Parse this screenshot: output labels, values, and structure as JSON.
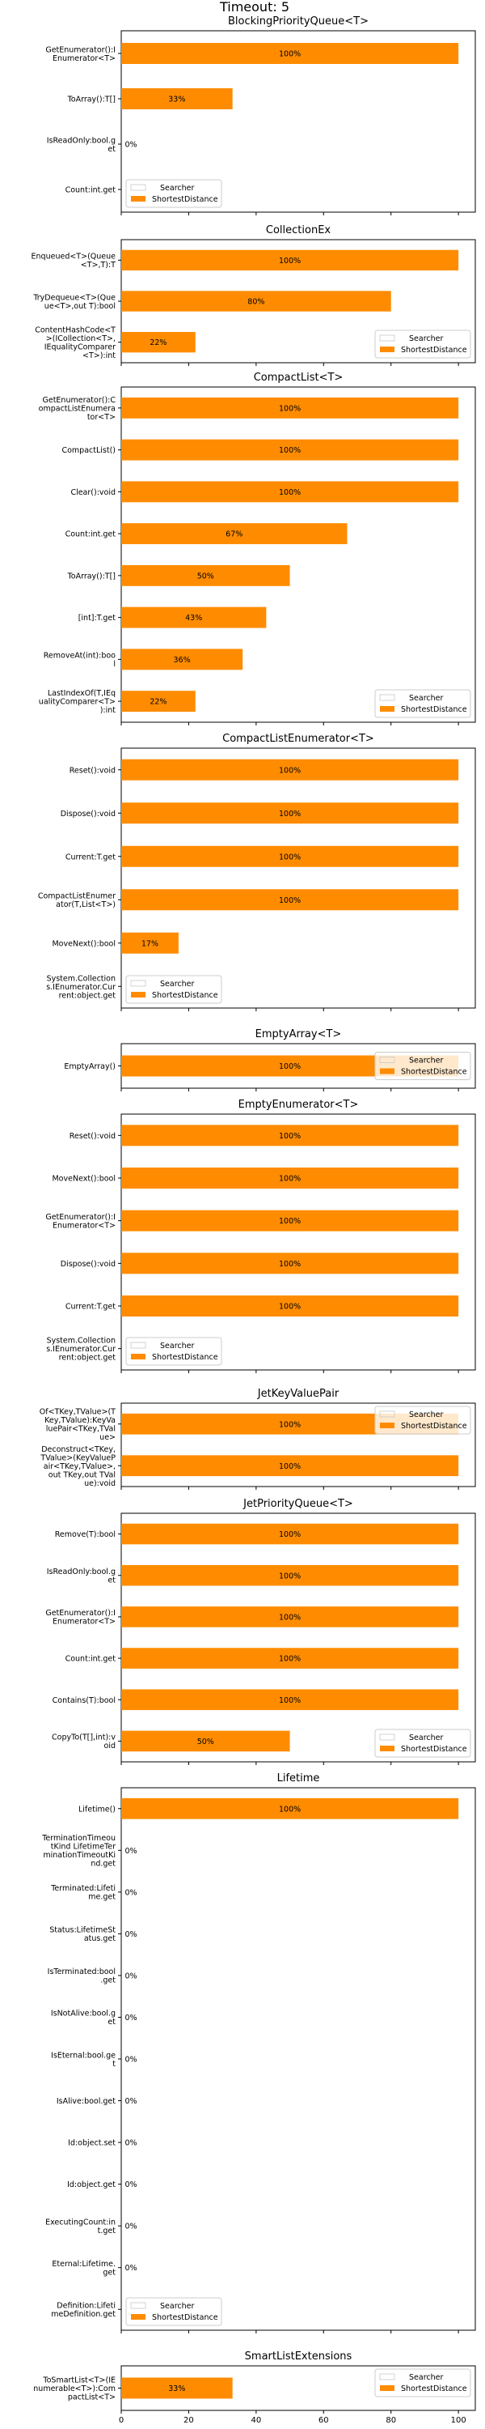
{
  "figure": {
    "title": "Timeout: 5"
  },
  "theme": {
    "bar_color": "#ff8c00",
    "searcher_color": "#c8c8c8",
    "axis_color": "#000000",
    "background": "#ffffff"
  },
  "legend_entries": [
    "Searcher",
    "ShortestDistance"
  ],
  "chart_data": [
    {
      "type": "bar",
      "orientation": "horizontal",
      "title": "BlockingPriorityQueue<T>",
      "categories": [
        "GetEnumerator():IEnumerator<T>",
        "ToArray():T[]",
        "IsReadOnly:bool.get",
        "Count:int.get"
      ],
      "series": [
        {
          "name": "Searcher",
          "values": [
            0,
            0,
            0,
            0
          ]
        },
        {
          "name": "ShortestDistance",
          "values": [
            100,
            33,
            0,
            0
          ]
        }
      ],
      "labels": [
        "100%",
        "33%",
        "0%",
        ""
      ],
      "legend_position": "lower left"
    },
    {
      "type": "bar",
      "orientation": "horizontal",
      "title": "CollectionEx",
      "categories": [
        "Enqueued<T>(Queue<T>,T):T",
        "TryDequeue<T>(Queue<T>,out T):bool",
        "ContentHashCode<T>(ICollection<T>,IEqualityComparer<T>):int"
      ],
      "series": [
        {
          "name": "Searcher",
          "values": [
            0,
            0,
            0
          ]
        },
        {
          "name": "ShortestDistance",
          "values": [
            100,
            80,
            22
          ]
        }
      ],
      "labels": [
        "100%",
        "80%",
        "22%"
      ],
      "legend_position": "lower right"
    },
    {
      "type": "bar",
      "orientation": "horizontal",
      "title": "CompactList<T>",
      "categories": [
        "GetEnumerator():CompactListEnumerator<T>",
        "CompactList()",
        "Clear():void",
        "Count:int.get",
        "ToArray():T[]",
        "[int]:T.get",
        "RemoveAt(int):bool",
        "LastIndexOf(T,IEqualityComparer<T>):int"
      ],
      "series": [
        {
          "name": "Searcher",
          "values": [
            0,
            0,
            0,
            0,
            0,
            0,
            0,
            0
          ]
        },
        {
          "name": "ShortestDistance",
          "values": [
            100,
            100,
            100,
            67,
            50,
            43,
            36,
            22
          ]
        }
      ],
      "labels": [
        "100%",
        "100%",
        "100%",
        "67%",
        "50%",
        "43%",
        "36%",
        "22%"
      ],
      "legend_position": "lower right"
    },
    {
      "type": "bar",
      "orientation": "horizontal",
      "title": "CompactListEnumerator<T>",
      "categories": [
        "Reset():void",
        "Dispose():void",
        "Current:T.get",
        "CompactListEnumerator(T,List<T>)",
        "MoveNext():bool",
        "System.Collections.IEnumerator.Current:object.get"
      ],
      "series": [
        {
          "name": "Searcher",
          "values": [
            0,
            0,
            0,
            0,
            0,
            0
          ]
        },
        {
          "name": "ShortestDistance",
          "values": [
            100,
            100,
            100,
            100,
            17,
            0
          ]
        }
      ],
      "labels": [
        "100%",
        "100%",
        "100%",
        "100%",
        "17%",
        ""
      ],
      "legend_position": "lower left"
    },
    {
      "type": "bar",
      "orientation": "horizontal",
      "title": "EmptyArray<T>",
      "categories": [
        "EmptyArray()"
      ],
      "series": [
        {
          "name": "Searcher",
          "values": [
            0
          ]
        },
        {
          "name": "ShortestDistance",
          "values": [
            100
          ]
        }
      ],
      "labels": [
        "100%"
      ],
      "legend_position": "right"
    },
    {
      "type": "bar",
      "orientation": "horizontal",
      "title": "EmptyEnumerator<T>",
      "categories": [
        "Reset():void",
        "MoveNext():bool",
        "GetEnumerator():IEnumerator<T>",
        "Dispose():void",
        "Current:T.get",
        "System.Collections.IEnumerator.Current:object.get"
      ],
      "series": [
        {
          "name": "Searcher",
          "values": [
            0,
            0,
            0,
            0,
            0,
            0
          ]
        },
        {
          "name": "ShortestDistance",
          "values": [
            100,
            100,
            100,
            100,
            100,
            0
          ]
        }
      ],
      "labels": [
        "100%",
        "100%",
        "100%",
        "100%",
        "100%",
        ""
      ],
      "legend_position": "lower left"
    },
    {
      "type": "bar",
      "orientation": "horizontal",
      "title": "JetKeyValuePair",
      "categories": [
        "Of<TKey,TValue>(TKey,TValue):KeyValuePair<TKey,TValue>",
        "Deconstruct<TKey,TValue>(KeyValuePair<TKey,TValue>,out TKey,out TValue):void"
      ],
      "series": [
        {
          "name": "Searcher",
          "values": [
            0,
            0
          ]
        },
        {
          "name": "ShortestDistance",
          "values": [
            100,
            100
          ]
        }
      ],
      "labels": [
        "100%",
        "100%"
      ],
      "legend_position": "upper right"
    },
    {
      "type": "bar",
      "orientation": "horizontal",
      "title": "JetPriorityQueue<T>",
      "categories": [
        "Remove(T):bool",
        "IsReadOnly:bool.get",
        "GetEnumerator():IEnumerator<T>",
        "Count:int.get",
        "Contains(T):bool",
        "CopyTo(T[],int):void"
      ],
      "series": [
        {
          "name": "Searcher",
          "values": [
            0,
            0,
            0,
            0,
            0,
            0
          ]
        },
        {
          "name": "ShortestDistance",
          "values": [
            100,
            100,
            100,
            100,
            100,
            50
          ]
        }
      ],
      "labels": [
        "100%",
        "100%",
        "100%",
        "100%",
        "100%",
        "50%"
      ],
      "legend_position": "lower right"
    },
    {
      "type": "bar",
      "orientation": "horizontal",
      "title": "Lifetime",
      "categories": [
        "Lifetime()",
        "TerminationTimeoutKind LifetimeTerminationTimeoutKind.get",
        "Terminated:Lifetime.get",
        "Status:LifetimeStatus.get",
        "IsTerminated:bool.get",
        "IsNotAlive:bool.get",
        "IsEternal:bool.get",
        "IsAlive:bool.get",
        "Id:object.set",
        "Id:object.get",
        "ExecutingCount:int.get",
        "Eternal:Lifetime.get",
        "Definition:LifetimeDefinition.get"
      ],
      "series": [
        {
          "name": "Searcher",
          "values": [
            0,
            0,
            0,
            0,
            0,
            0,
            0,
            0,
            0,
            0,
            0,
            0,
            0
          ]
        },
        {
          "name": "ShortestDistance",
          "values": [
            100,
            0,
            0,
            0,
            0,
            0,
            0,
            0,
            0,
            0,
            0,
            0,
            0
          ]
        }
      ],
      "labels": [
        "100%",
        "0%",
        "0%",
        "0%",
        "0%",
        "0%",
        "0%",
        "0%",
        "0%",
        "0%",
        "0%",
        "0%",
        ""
      ],
      "legend_position": "lower left"
    },
    {
      "type": "bar",
      "orientation": "horizontal",
      "title": "SmartListExtensions",
      "categories": [
        "ToSmartList<T>(IEnumerable<T>):CompactList<T>"
      ],
      "series": [
        {
          "name": "Searcher",
          "values": [
            0
          ]
        },
        {
          "name": "ShortestDistance",
          "values": [
            33
          ]
        }
      ],
      "labels": [
        "33%"
      ],
      "legend_position": "upper right"
    }
  ],
  "x_axis": {
    "ticks": [
      0,
      20,
      40,
      60,
      80,
      100
    ],
    "xlim": [
      0,
      105
    ]
  }
}
